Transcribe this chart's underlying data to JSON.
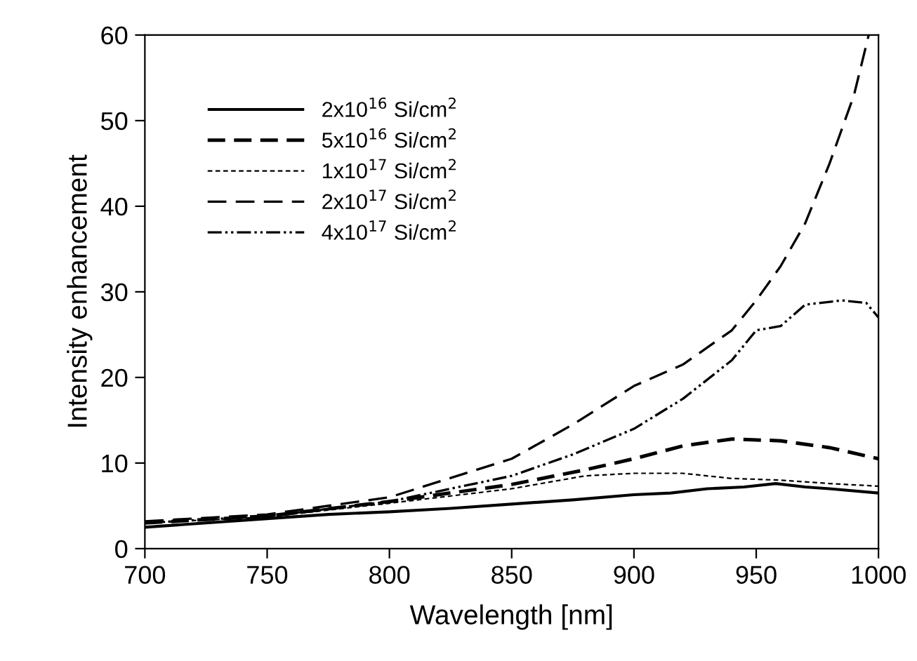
{
  "chart_data": {
    "type": "line",
    "xlabel": "Wavelength [nm]",
    "ylabel": "Intensity enhancement",
    "xlim": [
      700,
      1000
    ],
    "ylim": [
      0,
      60
    ],
    "xticks": [
      700,
      750,
      800,
      850,
      900,
      950,
      1000
    ],
    "yticks": [
      0,
      10,
      20,
      30,
      40,
      50,
      60
    ],
    "grid": false,
    "legend": "top left",
    "marker": "none",
    "series": [
      {
        "name": "2x10$^{16}$ Si/cm$^{2}$",
        "color": "#000000",
        "line_style": "solid",
        "x": [
          700,
          725,
          750,
          775,
          800,
          825,
          850,
          875,
          900,
          915,
          930,
          945,
          958,
          970,
          980,
          1000
        ],
        "values": [
          2.5,
          3.0,
          3.5,
          4.0,
          4.3,
          4.7,
          5.2,
          5.7,
          6.3,
          6.5,
          7.0,
          7.2,
          7.6,
          7.2,
          7.0,
          6.5
        ]
      },
      {
        "name": "5x10$^{16}$ Si/cm$^{2}$",
        "color": "#000000",
        "line_style": "dashed",
        "x": [
          700,
          750,
          800,
          850,
          880,
          900,
          920,
          940,
          960,
          980,
          1000
        ],
        "values": [
          3.0,
          3.8,
          5.5,
          7.5,
          9.2,
          10.5,
          12.0,
          12.8,
          12.6,
          11.8,
          10.5
        ]
      },
      {
        "name": "1x10$^{17}$ Si/cm$^{2}$",
        "color": "#000000",
        "line_style": "dotted",
        "x": [
          700,
          750,
          800,
          850,
          880,
          900,
          920,
          940,
          960,
          980,
          1000
        ],
        "values": [
          3.0,
          3.7,
          5.3,
          7.0,
          8.5,
          8.8,
          8.8,
          8.2,
          8.0,
          7.6,
          7.3
        ]
      },
      {
        "name": "2x10$^{17}$ Si/cm$^{2}$",
        "color": "#000000",
        "line_style": "longdash",
        "x": [
          700,
          750,
          800,
          850,
          875,
          900,
          920,
          940,
          950,
          960,
          970,
          980,
          990,
          996
        ],
        "values": [
          3.2,
          4.0,
          6.0,
          10.5,
          14.5,
          19.0,
          21.5,
          25.5,
          29.0,
          33.0,
          38.0,
          45.0,
          53.0,
          60.0
        ]
      },
      {
        "name": "4x10$^{17}$ Si/cm$^{2}$",
        "color": "#000000",
        "line_style": "dashdotdot",
        "x": [
          700,
          750,
          800,
          850,
          875,
          900,
          920,
          940,
          950,
          960,
          970,
          985,
          995,
          1000
        ],
        "values": [
          3.0,
          3.8,
          5.5,
          8.5,
          11.0,
          14.0,
          17.5,
          22.0,
          25.5,
          26.0,
          28.5,
          29.0,
          28.7,
          27.0
        ]
      }
    ]
  }
}
